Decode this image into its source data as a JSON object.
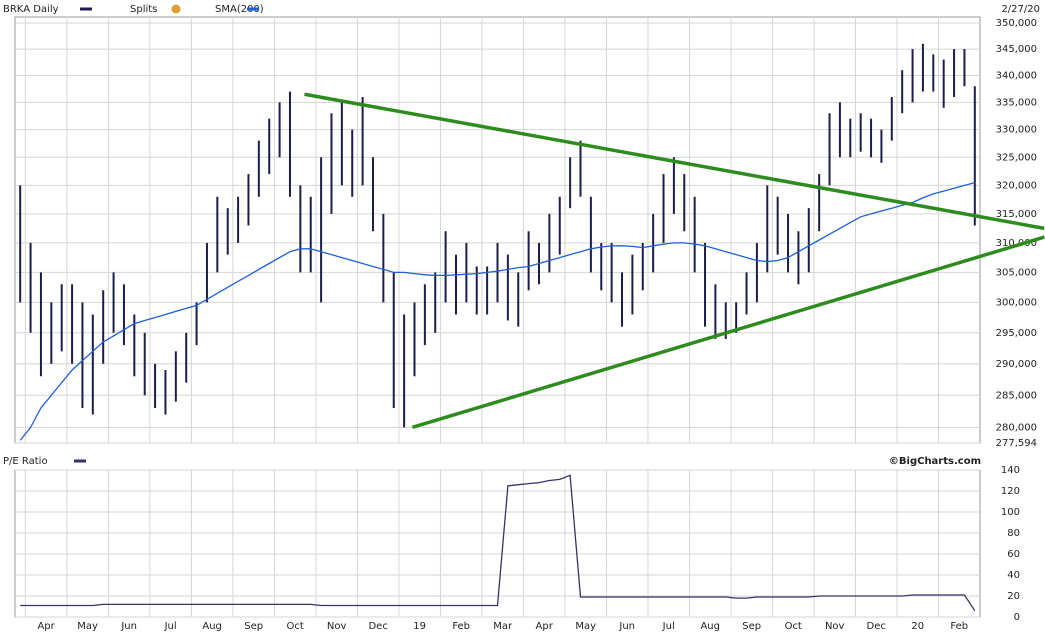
{
  "credit": "©BigCharts.com",
  "chart_data": [
    {
      "type": "hilo",
      "title": "BRKA Daily",
      "date": "2/27/20",
      "splits_label": "Splits",
      "bar_color": "#1c1c4e",
      "log_scale": true,
      "grid": true,
      "categories": [
        null,
        "Apr",
        null,
        null,
        null,
        "May",
        null,
        null,
        null,
        "Jun",
        null,
        null,
        null,
        "Jul",
        null,
        null,
        null,
        "Aug",
        null,
        null,
        null,
        "Sep",
        null,
        null,
        null,
        "Oct",
        null,
        null,
        null,
        "Nov",
        null,
        null,
        null,
        "Dec",
        null,
        null,
        null,
        "19",
        null,
        null,
        null,
        "Feb",
        null,
        null,
        null,
        "Mar",
        null,
        null,
        null,
        "Apr",
        null,
        null,
        null,
        "May",
        null,
        null,
        null,
        "Jun",
        null,
        null,
        null,
        "Jul",
        null,
        null,
        null,
        "Aug",
        null,
        null,
        null,
        "Sep",
        null,
        null,
        null,
        "Oct",
        null,
        null,
        null,
        "Nov",
        null,
        null,
        null,
        "Dec",
        null,
        null,
        null,
        "20",
        null,
        null,
        null,
        "Feb",
        null,
        null,
        null
      ],
      "high": [
        320000,
        310000,
        305000,
        300000,
        303000,
        303000,
        300000,
        298000,
        302000,
        305000,
        303000,
        298000,
        295000,
        290000,
        289000,
        292000,
        295000,
        300000,
        310000,
        318000,
        316000,
        318000,
        322000,
        328000,
        332000,
        335000,
        337000,
        320000,
        318000,
        325000,
        333000,
        335000,
        330000,
        336000,
        325000,
        315000,
        305000,
        298000,
        300000,
        303000,
        305000,
        312000,
        308000,
        310000,
        306000,
        306000,
        310000,
        308000,
        305000,
        312000,
        310000,
        315000,
        318000,
        325000,
        328000,
        318000,
        310000,
        310000,
        305000,
        308000,
        310000,
        315000,
        322000,
        325000,
        322000,
        318000,
        310000,
        303000,
        300000,
        300000,
        305000,
        310000,
        320000,
        318000,
        315000,
        312000,
        316000,
        322000,
        333000,
        335000,
        332000,
        333000,
        332000,
        330000,
        336000,
        341000,
        345000,
        346000,
        344000,
        343000,
        345000,
        345000,
        338000
      ],
      "low": [
        300000,
        295000,
        288000,
        290000,
        292000,
        290000,
        283000,
        282000,
        290000,
        295000,
        293000,
        288000,
        285000,
        283000,
        282000,
        284000,
        287000,
        293000,
        300000,
        305000,
        308000,
        310000,
        313000,
        318000,
        322000,
        325000,
        318000,
        305000,
        305000,
        300000,
        315000,
        320000,
        318000,
        320000,
        312000,
        300000,
        283000,
        280000,
        288000,
        293000,
        295000,
        300000,
        298000,
        300000,
        298000,
        298000,
        300000,
        297000,
        296000,
        302000,
        303000,
        305000,
        308000,
        316000,
        318000,
        305000,
        302000,
        300000,
        296000,
        298000,
        302000,
        305000,
        310000,
        315000,
        312000,
        305000,
        296000,
        294000,
        294000,
        295000,
        298000,
        300000,
        305000,
        308000,
        305000,
        303000,
        305000,
        312000,
        320000,
        325000,
        325000,
        326000,
        325000,
        324000,
        328000,
        333000,
        335000,
        337000,
        337000,
        334000,
        336000,
        338000,
        313000
      ],
      "series": [
        {
          "name": "SMA(200)",
          "color": "#1f5fd6",
          "values": [
            278000,
            280000,
            283000,
            285000,
            287000,
            289000,
            290500,
            292000,
            293500,
            294500,
            295500,
            296500,
            297000,
            297500,
            298000,
            298500,
            299000,
            299500,
            300500,
            301500,
            302500,
            303500,
            304500,
            305500,
            306500,
            307500,
            308500,
            309000,
            309000,
            308500,
            308000,
            307500,
            307000,
            306500,
            306000,
            305500,
            305000,
            305000,
            304800,
            304600,
            304500,
            304500,
            304600,
            304700,
            304800,
            305000,
            305200,
            305500,
            305800,
            306000,
            306500,
            307000,
            307500,
            308000,
            308500,
            309000,
            309300,
            309500,
            309500,
            309400,
            309200,
            309500,
            309800,
            310000,
            310000,
            309800,
            309500,
            309000,
            308500,
            308000,
            307500,
            307000,
            306800,
            307000,
            307500,
            308500,
            309500,
            310500,
            311500,
            312500,
            313500,
            314500,
            315000,
            315500,
            316000,
            316500,
            317000,
            317800,
            318500,
            319000,
            319500,
            320000,
            320500
          ]
        }
      ],
      "trendlines": [
        {
          "color": "#2e8b1e",
          "x": [
            27.9,
            99.2
          ],
          "values": [
            336500,
            312500
          ]
        },
        {
          "color": "#2e8b1e",
          "x": [
            38.3,
            99.2
          ],
          "values": [
            280000,
            311000
          ]
        }
      ],
      "ylim": [
        277594,
        351160
      ],
      "yticks": [
        {
          "value": 350000,
          "label": "350,000"
        },
        {
          "value": 345000,
          "label": "345,000"
        },
        {
          "value": 340000,
          "label": "340,000"
        },
        {
          "value": 335000,
          "label": "335,000"
        },
        {
          "value": 330000,
          "label": "330,000"
        },
        {
          "value": 325000,
          "label": "325,000"
        },
        {
          "value": 320000,
          "label": "320,000"
        },
        {
          "value": 315000,
          "label": "315,000"
        },
        {
          "value": 310000,
          "label": "310,000"
        },
        {
          "value": 305000,
          "label": "305,000"
        },
        {
          "value": 300000,
          "label": "300,000"
        },
        {
          "value": 295000,
          "label": "295,000"
        },
        {
          "value": 290000,
          "label": "290,000"
        },
        {
          "value": 285000,
          "label": "285,000"
        },
        {
          "value": 280000,
          "label": "280,000"
        },
        {
          "value": 277594,
          "label": "277,594"
        }
      ]
    },
    {
      "type": "line",
      "grid": true,
      "series": [
        {
          "name": "P/E Ratio",
          "color": "#34346a",
          "values": [
            11,
            11,
            11,
            11,
            11,
            11,
            11,
            11,
            12,
            12,
            12,
            12,
            12,
            12,
            12,
            12,
            12,
            12,
            12,
            12,
            12,
            12,
            12,
            12,
            12,
            12,
            12,
            12,
            12,
            11,
            11,
            11,
            11,
            11,
            11,
            11,
            11,
            11,
            11,
            11,
            11,
            11,
            11,
            11,
            11,
            11,
            11,
            125,
            126,
            127,
            128,
            130,
            131,
            135,
            19,
            19,
            19,
            19,
            19,
            19,
            19,
            19,
            19,
            19,
            19,
            19,
            19,
            19,
            19,
            18,
            18,
            19,
            19,
            19,
            19,
            19,
            19,
            20,
            20,
            20,
            20,
            20,
            20,
            20,
            20,
            20,
            21,
            21,
            21,
            21,
            21,
            21,
            6
          ]
        }
      ],
      "ylim": [
        0,
        140
      ],
      "yticks": [
        0,
        20,
        40,
        60,
        80,
        100,
        120,
        140
      ]
    }
  ]
}
